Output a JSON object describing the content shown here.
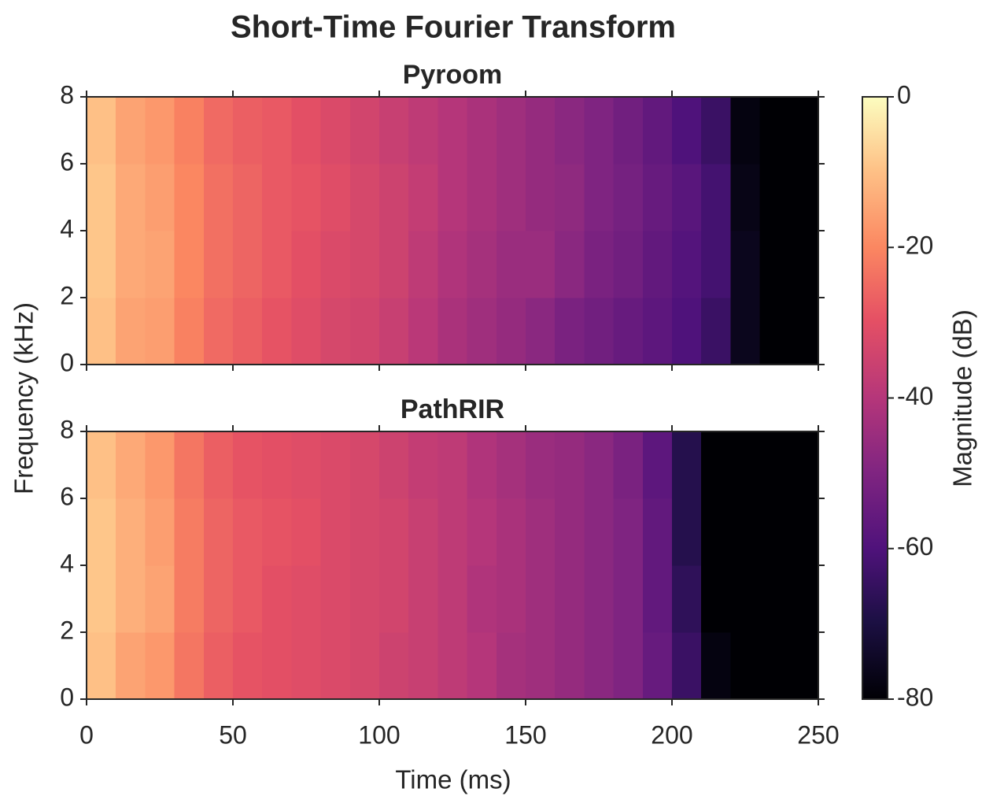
{
  "figure": {
    "title": "Short-Time Fourier Transform",
    "xlabel": "Time (ms)",
    "ylabel": "Frequency (kHz)",
    "colorbar": {
      "label": "Magnitude (dB)",
      "colormap": "magma",
      "clim": [
        -80,
        0
      ],
      "ticks": [
        0,
        -20,
        -40,
        -60,
        -80
      ]
    }
  },
  "chart_data": [
    {
      "type": "heatmap",
      "title": "Pyroom",
      "x": [
        0,
        10,
        20,
        30,
        40,
        50,
        60,
        70,
        80,
        90,
        100,
        110,
        120,
        130,
        140,
        150,
        160,
        170,
        180,
        190,
        200,
        210,
        220,
        230,
        240,
        250
      ],
      "y": [
        0,
        2,
        4,
        6,
        8
      ],
      "xlim": [
        0,
        250
      ],
      "xticks": [
        0,
        50,
        100,
        150,
        200,
        250
      ],
      "ylim": [
        0,
        8
      ],
      "yticks": [
        0,
        2,
        4,
        6,
        8
      ],
      "values": [
        [
          -10,
          -15,
          -16,
          -21,
          -25,
          -27,
          -29,
          -31,
          -33,
          -34,
          -36,
          -39,
          -42,
          -44,
          -46,
          -48,
          -51,
          -53,
          -55,
          -57,
          -60,
          -64,
          -76,
          -80,
          -80
        ],
        [
          -9,
          -14,
          -15,
          -20,
          -24,
          -26,
          -28,
          -30,
          -32,
          -33,
          -35,
          -38,
          -41,
          -43,
          -45,
          -45,
          -48,
          -51,
          -53,
          -56,
          -59,
          -62,
          -76,
          -80,
          -80
        ],
        [
          -9,
          -14,
          -16,
          -20,
          -24,
          -26,
          -28,
          -29,
          -31,
          -33,
          -35,
          -37,
          -40,
          -42,
          -44,
          -46,
          -47,
          -50,
          -52,
          -55,
          -58,
          -62,
          -77,
          -80,
          -80
        ],
        [
          -10,
          -15,
          -17,
          -21,
          -25,
          -27,
          -28,
          -30,
          -32,
          -34,
          -36,
          -38,
          -40,
          -42,
          -44,
          -46,
          -48,
          -50,
          -53,
          -56,
          -60,
          -64,
          -78,
          -80,
          -80
        ]
      ]
    },
    {
      "type": "heatmap",
      "title": "PathRIR",
      "x": [
        0,
        10,
        20,
        30,
        40,
        50,
        60,
        70,
        80,
        90,
        100,
        110,
        120,
        130,
        140,
        150,
        160,
        170,
        180,
        190,
        200,
        210,
        220,
        230,
        240,
        250
      ],
      "y": [
        0,
        2,
        4,
        6,
        8
      ],
      "xlim": [
        0,
        250
      ],
      "xticks": [
        0,
        50,
        100,
        150,
        200,
        250
      ],
      "ylim": [
        0,
        8
      ],
      "yticks": [
        0,
        2,
        4,
        6,
        8
      ],
      "values": [
        [
          -10,
          -15,
          -17,
          -23,
          -27,
          -29,
          -30,
          -31,
          -32,
          -33,
          -35,
          -36,
          -38,
          -40,
          -43,
          -44,
          -46,
          -48,
          -50,
          -55,
          -64,
          -78,
          -80,
          -80,
          -80
        ],
        [
          -9,
          -13,
          -15,
          -22,
          -26,
          -28,
          -30,
          -31,
          -32,
          -33,
          -34,
          -36,
          -38,
          -41,
          -42,
          -44,
          -46,
          -48,
          -50,
          -56,
          -66,
          -80,
          -80,
          -80,
          -80
        ],
        [
          -9,
          -13,
          -16,
          -22,
          -26,
          -28,
          -29,
          -30,
          -32,
          -33,
          -34,
          -36,
          -38,
          -40,
          -42,
          -44,
          -46,
          -48,
          -50,
          -56,
          -68,
          -80,
          -80,
          -80,
          -80
        ],
        [
          -10,
          -14,
          -17,
          -23,
          -27,
          -29,
          -30,
          -31,
          -32,
          -33,
          -35,
          -37,
          -38,
          -41,
          -43,
          -45,
          -46,
          -48,
          -51,
          -57,
          -68,
          -80,
          -80,
          -80,
          -80
        ]
      ]
    }
  ]
}
